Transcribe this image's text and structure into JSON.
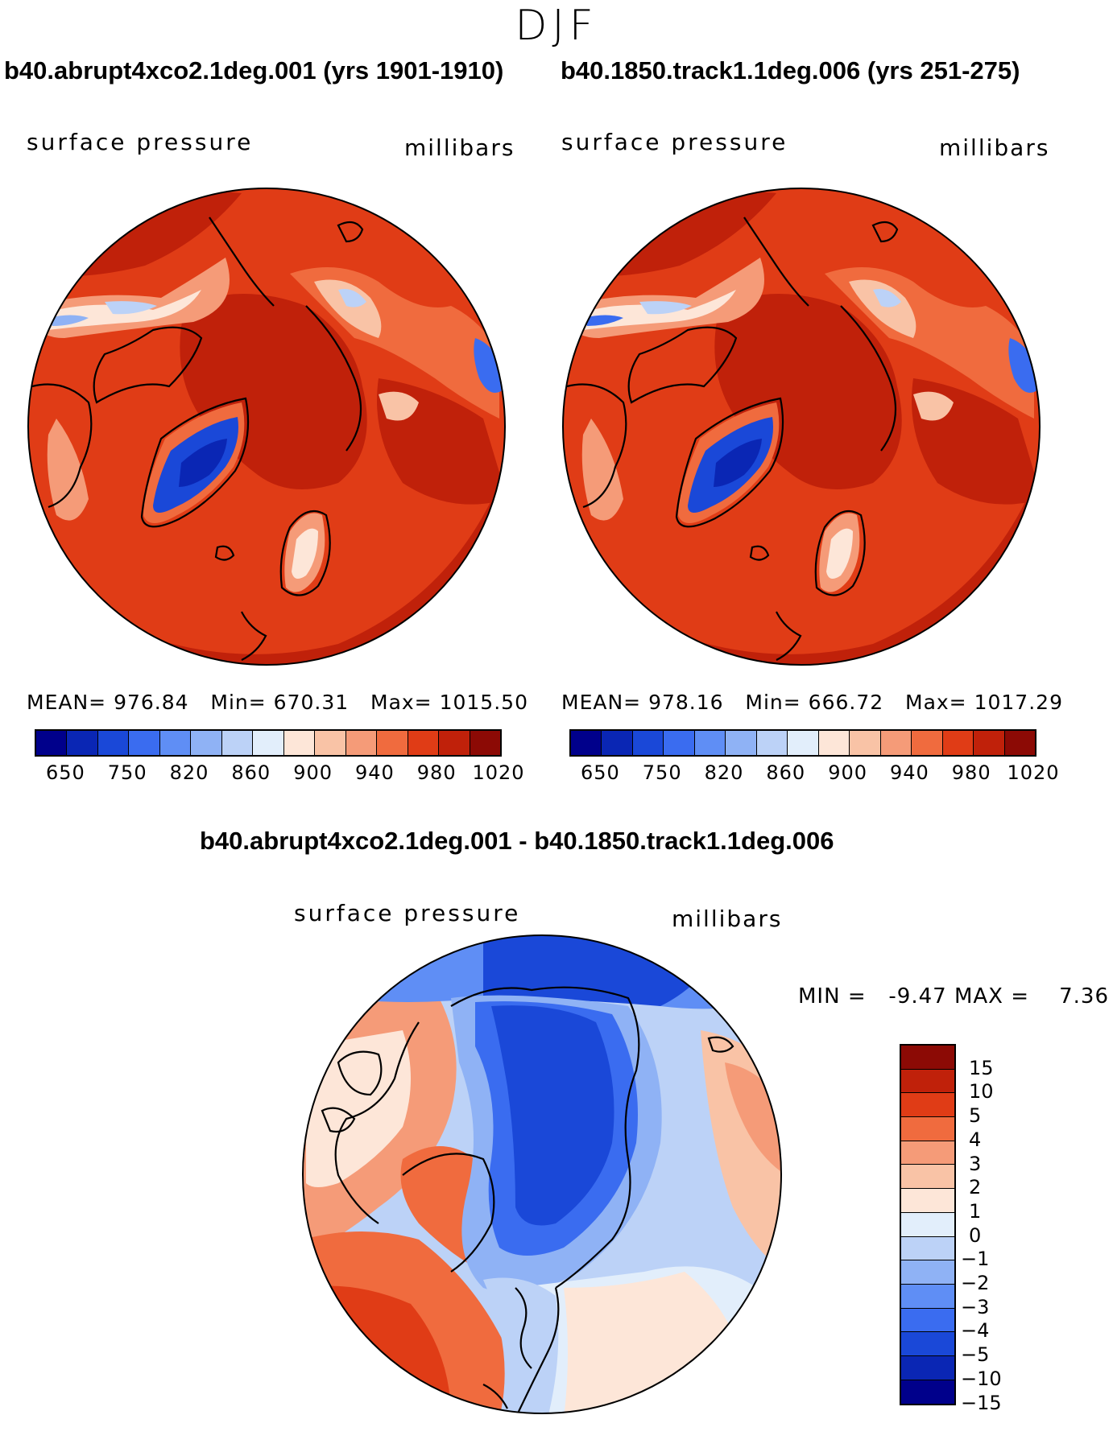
{
  "season": "DJF",
  "panels": [
    {
      "title": "b40.abrupt4xco2.1deg.001 (yrs 1901-1910)",
      "field": "surface pressure",
      "units": "millibars",
      "stats": {
        "mean_label": "MEAN=",
        "mean": "976.84",
        "min_label": "Min=",
        "min": "670.31",
        "max_label": "Max=",
        "max": "1015.50"
      }
    },
    {
      "title": "b40.1850.track1.1deg.006 (yrs 251-275)",
      "field": "surface pressure",
      "units": "millibars",
      "stats": {
        "mean_label": "MEAN=",
        "mean": "978.16",
        "min_label": "Min=",
        "min": "666.72",
        "max_label": "Max=",
        "max": "1017.29"
      }
    }
  ],
  "abs_colorbar": {
    "colors": [
      "#00008b",
      "#0a26b4",
      "#1a48d8",
      "#3a6cf0",
      "#5f8ef5",
      "#8fb2f5",
      "#bcd2f7",
      "#e2eefb",
      "#fde6d8",
      "#f9c3a6",
      "#f59b78",
      "#f06b3e",
      "#e03c16",
      "#c0210a",
      "#8c0a05"
    ],
    "labels": [
      "650",
      "750",
      "820",
      "860",
      "900",
      "940",
      "980",
      "1020"
    ]
  },
  "diff_panel": {
    "title": "b40.abrupt4xco2.1deg.001 - b40.1850.track1.1deg.006",
    "field": "surface pressure",
    "units": "millibars",
    "min_label": "MIN =",
    "min": "-9.47",
    "max_label": "MAX =",
    "max": "7.36"
  },
  "diff_colorbar": {
    "colors": [
      "#8c0a05",
      "#c0210a",
      "#e03c16",
      "#f06b3e",
      "#f59b78",
      "#f9c3a6",
      "#fde6d8",
      "#e2eefb",
      "#bcd2f7",
      "#8fb2f5",
      "#5f8ef5",
      "#3a6cf0",
      "#1a48d8",
      "#0a26b4",
      "#00008b"
    ],
    "labels": [
      "15",
      "10",
      "5",
      "4",
      "3",
      "2",
      "1",
      "0",
      "−1",
      "−2",
      "−3",
      "−4",
      "−5",
      "−10",
      "−15"
    ]
  },
  "chart_data": [
    {
      "type": "heatmap",
      "title": "surface pressure",
      "units": "millibars",
      "projection": "north polar stereographic",
      "mean": 976.84,
      "min": 670.31,
      "max": 1015.5,
      "levels": [
        650,
        750,
        820,
        860,
        900,
        940,
        980,
        1020
      ]
    },
    {
      "type": "heatmap",
      "title": "surface pressure",
      "units": "millibars",
      "projection": "north polar stereographic",
      "mean": 978.16,
      "min": 666.72,
      "max": 1017.29,
      "levels": [
        650,
        750,
        820,
        860,
        900,
        940,
        980,
        1020
      ]
    },
    {
      "type": "heatmap",
      "title": "surface pressure difference",
      "units": "millibars",
      "projection": "north polar stereographic",
      "min": -9.47,
      "max": 7.36,
      "levels": [
        -15,
        -10,
        -5,
        -4,
        -3,
        -2,
        -1,
        0,
        1,
        2,
        3,
        4,
        5,
        10,
        15
      ]
    }
  ]
}
